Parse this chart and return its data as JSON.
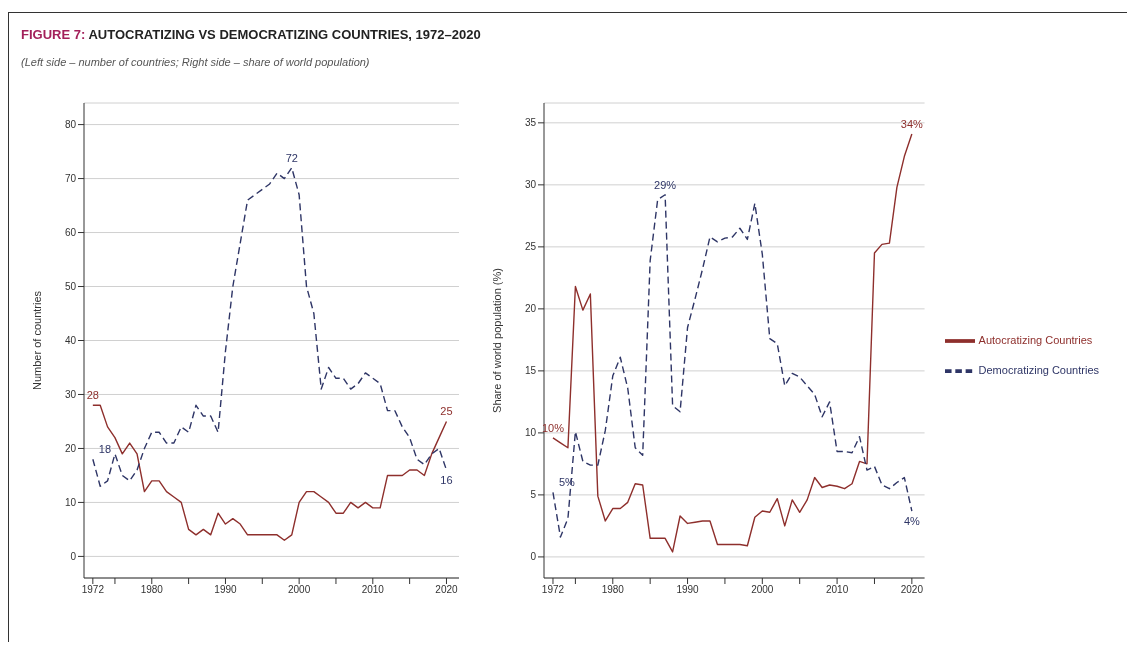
{
  "chart_data": [
    {
      "type": "line",
      "title": "FIGURE 7: AUTOCRATIZING VS DEMOCRATIZING COUNTRIES, 1972–2020",
      "subtitle": "(Left side – number of countries; Right side – share of world population)",
      "ylabel": "Number of countries",
      "x": [
        1972,
        1973,
        1974,
        1975,
        1976,
        1977,
        1978,
        1979,
        1980,
        1981,
        1982,
        1983,
        1984,
        1985,
        1986,
        1987,
        1988,
        1989,
        1990,
        1991,
        1992,
        1993,
        1994,
        1995,
        1996,
        1997,
        1998,
        1999,
        2000,
        2001,
        2002,
        2003,
        2004,
        2005,
        2006,
        2007,
        2008,
        2009,
        2010,
        2011,
        2012,
        2013,
        2014,
        2015,
        2016,
        2017,
        2018,
        2019,
        2020
      ],
      "xlim": [
        1970.8,
        2021.7
      ],
      "xticks": [
        1972,
        {
          "value": 1975,
          "label": null
        },
        1980,
        {
          "value": 1985,
          "label": null
        },
        1990,
        {
          "value": 1995,
          "label": null
        },
        2000,
        {
          "value": 2005,
          "label": null
        },
        2010,
        {
          "value": 2015,
          "label": null
        },
        2020
      ],
      "ylim": [
        -4,
        84
      ],
      "yticks": [
        0,
        10,
        20,
        30,
        40,
        50,
        60,
        70,
        80
      ],
      "grid": "y",
      "legend": false,
      "marker": "none",
      "series": [
        {
          "color": "#8e2f2c",
          "line_style": "solid",
          "values": [
            28,
            28,
            24,
            22,
            19,
            21,
            19,
            12,
            14,
            14,
            12,
            11,
            10,
            5,
            4,
            5,
            4,
            8,
            6,
            7,
            6,
            4,
            4,
            4,
            4,
            4,
            3,
            4,
            10,
            12,
            12,
            11,
            10,
            8,
            8,
            10,
            9,
            10,
            9,
            9,
            15,
            15,
            15,
            16,
            16,
            15,
            19,
            22,
            25
          ]
        },
        {
          "color": "#2e3566",
          "line_style": "dashed",
          "values": [
            18,
            13,
            14,
            19,
            15,
            14,
            16,
            20,
            23,
            23,
            21,
            21,
            24,
            23,
            28,
            26,
            26,
            23,
            38,
            50,
            58,
            66,
            67,
            68,
            69,
            71,
            70,
            72,
            67,
            50,
            45,
            31,
            35,
            33,
            33,
            31,
            32,
            34,
            33,
            32,
            27,
            27,
            24,
            22,
            18,
            17,
            19,
            20,
            16
          ]
        }
      ],
      "annotations": [
        {
          "text": "28",
          "x": 1972,
          "y": 28
        },
        {
          "text": "18",
          "x": 1972,
          "y": 18
        },
        {
          "text": "72",
          "x": 1999,
          "y": 72
        },
        {
          "text": "25",
          "x": 2020,
          "y": 25
        },
        {
          "text": "16",
          "x": 2020,
          "y": 16
        }
      ]
    },
    {
      "type": "line",
      "ylabel": "Share of world population (%)",
      "x": [
        1972,
        1973,
        1974,
        1975,
        1976,
        1977,
        1978,
        1979,
        1980,
        1981,
        1982,
        1983,
        1984,
        1985,
        1986,
        1987,
        1988,
        1989,
        1990,
        1991,
        1992,
        1993,
        1994,
        1995,
        1996,
        1997,
        1998,
        1999,
        2000,
        2001,
        2002,
        2003,
        2004,
        2005,
        2006,
        2007,
        2008,
        2009,
        2010,
        2011,
        2012,
        2013,
        2014,
        2015,
        2016,
        2017,
        2018,
        2019,
        2020
      ],
      "xlim": [
        1970.8,
        2021.7
      ],
      "xticks": [
        1972,
        {
          "value": 1975,
          "label": null
        },
        1980,
        {
          "value": 1985,
          "label": null
        },
        1990,
        {
          "value": 1995,
          "label": null
        },
        2000,
        {
          "value": 2005,
          "label": null
        },
        2010,
        {
          "value": 2015,
          "label": null
        },
        2020
      ],
      "ylim": [
        -1.7,
        36.6
      ],
      "yticks": [
        0,
        5,
        10,
        15,
        20,
        25,
        30,
        35
      ],
      "grid": "y",
      "legend": "right",
      "marker": "none",
      "series": [
        {
          "name": "Autocratizing Countries",
          "color": "#8e2f2c",
          "line_style": "solid",
          "values": [
            9.6,
            9.2,
            8.8,
            21.8,
            19.9,
            21.2,
            4.9,
            2.9,
            3.9,
            3.9,
            4.4,
            5.9,
            5.8,
            1.5,
            1.5,
            1.5,
            0.4,
            3.3,
            2.7,
            2.8,
            2.9,
            2.9,
            1.0,
            1.0,
            1.0,
            1.0,
            0.9,
            3.2,
            3.7,
            3.6,
            4.7,
            2.5,
            4.6,
            3.6,
            4.6,
            6.4,
            5.6,
            5.8,
            5.7,
            5.5,
            5.9,
            7.7,
            7.5,
            24.5,
            25.2,
            25.3,
            29.8,
            32.3,
            34.1
          ]
        },
        {
          "name": "Democratizing Countries",
          "color": "#2e3566",
          "line_style": "dashed",
          "values": [
            5.2,
            1.6,
            3.1,
            10.1,
            7.7,
            7.4,
            7.4,
            10.2,
            14.6,
            16.1,
            13.6,
            8.8,
            8.2,
            23.9,
            28.8,
            29.2,
            12.2,
            11.7,
            18.5,
            20.8,
            23.2,
            25.8,
            25.4,
            25.7,
            25.8,
            26.5,
            25.6,
            28.5,
            24.4,
            17.6,
            17.2,
            13.8,
            14.8,
            14.5,
            13.8,
            13.1,
            11.3,
            12.5,
            8.5,
            8.5,
            8.4,
            9.7,
            7.0,
            7.3,
            5.8,
            5.5,
            6.0,
            6.4,
            3.7
          ]
        }
      ],
      "annotations": [
        {
          "text": "10%",
          "x": 1972,
          "y": 9.6
        },
        {
          "text": "5%",
          "x": 1972,
          "y": 5.2
        },
        {
          "text": "29%",
          "x": 1987,
          "y": 29.2
        },
        {
          "text": "34%",
          "x": 2020,
          "y": 34.1
        },
        {
          "text": "4%",
          "x": 2020,
          "y": 3.7
        }
      ]
    }
  ]
}
